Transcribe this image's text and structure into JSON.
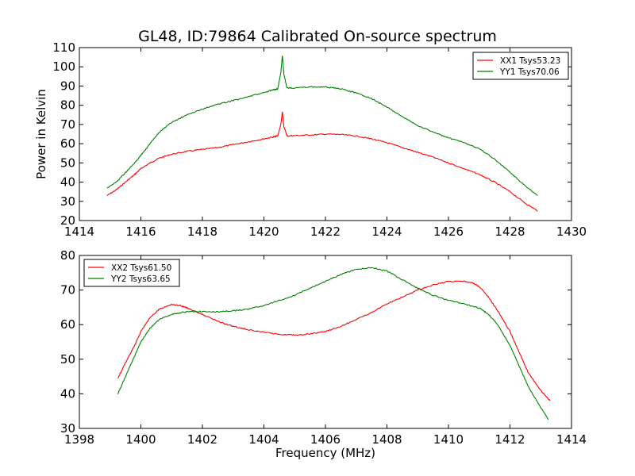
{
  "figure": {
    "title": "GL48, ID:79864 Calibrated On-source spectrum"
  },
  "chart_data": [
    {
      "type": "line",
      "title": "GL48, ID:79864 Calibrated On-source spectrum",
      "xlabel": "",
      "ylabel": "Power in Kelvin",
      "xlim": [
        1414,
        1430
      ],
      "ylim": [
        20,
        110
      ],
      "x_ticks": [
        1414,
        1416,
        1418,
        1420,
        1422,
        1424,
        1426,
        1428,
        1430
      ],
      "y_ticks": [
        20,
        30,
        40,
        50,
        60,
        70,
        80,
        90,
        100,
        110
      ],
      "grid": false,
      "legend_position": "upper-right",
      "series": [
        {
          "name": "XX1 Tsys53.23",
          "color": "#ff0000",
          "x": [
            1414.9,
            1415.2,
            1415.5,
            1415.8,
            1416.0,
            1416.3,
            1416.6,
            1417.0,
            1417.5,
            1418.0,
            1418.5,
            1419.0,
            1419.5,
            1420.0,
            1420.3,
            1420.45,
            1420.55,
            1420.6,
            1420.65,
            1420.75,
            1421.0,
            1421.5,
            1422.0,
            1422.5,
            1423.0,
            1423.5,
            1424.0,
            1424.5,
            1425.0,
            1425.5,
            1426.0,
            1426.5,
            1427.0,
            1427.5,
            1428.0,
            1428.5,
            1428.9
          ],
          "y": [
            33,
            36,
            40,
            44,
            47,
            50,
            52.5,
            54.5,
            56,
            57,
            58,
            59.5,
            61,
            62.5,
            63.5,
            64,
            70,
            76.5,
            69,
            64,
            64.2,
            64.5,
            65,
            64.8,
            64,
            62.5,
            60.5,
            58,
            55.5,
            53,
            50,
            47,
            44,
            40,
            35,
            29,
            25
          ]
        },
        {
          "name": "YY1 Tsys70.06",
          "color": "#008000",
          "x": [
            1414.9,
            1415.2,
            1415.5,
            1415.8,
            1416.0,
            1416.3,
            1416.6,
            1417.0,
            1417.5,
            1418.0,
            1418.5,
            1419.0,
            1419.5,
            1420.0,
            1420.3,
            1420.45,
            1420.55,
            1420.6,
            1420.65,
            1420.75,
            1421.0,
            1421.5,
            1422.0,
            1422.5,
            1423.0,
            1423.5,
            1424.0,
            1424.5,
            1425.0,
            1425.5,
            1426.0,
            1426.5,
            1427.0,
            1427.5,
            1428.0,
            1428.5,
            1428.9
          ],
          "y": [
            37,
            40,
            45,
            50,
            54,
            60,
            66,
            71,
            75,
            78,
            80.5,
            82.5,
            84.5,
            86.5,
            88,
            88.5,
            97,
            106,
            96,
            89,
            89,
            89.5,
            89.5,
            88.5,
            86.5,
            83.5,
            79,
            74,
            69.5,
            66,
            63,
            60.5,
            57.5,
            52,
            45,
            38,
            33
          ]
        }
      ]
    },
    {
      "type": "line",
      "title": "",
      "xlabel": "Frequency (MHz)",
      "ylabel": "",
      "xlim": [
        1398,
        1414
      ],
      "ylim": [
        30,
        80
      ],
      "x_ticks": [
        1398,
        1400,
        1402,
        1404,
        1406,
        1408,
        1410,
        1412,
        1414
      ],
      "y_ticks": [
        30,
        40,
        50,
        60,
        70,
        80
      ],
      "grid": false,
      "legend_position": "upper-left",
      "series": [
        {
          "name": "XX2 Tsys61.50",
          "color": "#ff0000",
          "x": [
            1399.25,
            1399.5,
            1399.8,
            1400.0,
            1400.3,
            1400.6,
            1401.0,
            1401.3,
            1401.6,
            1402.0,
            1402.5,
            1403.0,
            1403.5,
            1404.0,
            1404.5,
            1405.0,
            1405.5,
            1406.0,
            1406.5,
            1407.0,
            1407.5,
            1408.0,
            1408.5,
            1409.0,
            1409.5,
            1410.0,
            1410.5,
            1410.8,
            1411.0,
            1411.3,
            1411.6,
            1412.0,
            1412.3,
            1412.6,
            1413.0,
            1413.3
          ],
          "y": [
            44.5,
            49,
            54,
            58,
            62,
            64.5,
            65.8,
            65.5,
            64.5,
            63,
            61,
            59.5,
            58.5,
            57.8,
            57.2,
            57,
            57.3,
            58,
            59.5,
            61.5,
            63.5,
            66,
            68,
            70,
            71.5,
            72.5,
            72.5,
            72,
            71,
            68,
            64,
            58,
            52,
            46,
            41,
            38
          ]
        },
        {
          "name": "YY2 Tsys63.65",
          "color": "#008000",
          "x": [
            1399.25,
            1399.5,
            1399.8,
            1400.0,
            1400.3,
            1400.6,
            1401.0,
            1401.3,
            1401.6,
            1402.0,
            1402.5,
            1403.0,
            1403.5,
            1404.0,
            1404.5,
            1405.0,
            1405.5,
            1406.0,
            1406.5,
            1407.0,
            1407.5,
            1408.0,
            1408.5,
            1409.0,
            1409.5,
            1410.0,
            1410.5,
            1411.0,
            1411.3,
            1411.6,
            1412.0,
            1412.3,
            1412.6,
            1413.0,
            1413.25
          ],
          "y": [
            40,
            45,
            51,
            55,
            59,
            61.5,
            63,
            63.5,
            63.8,
            63.8,
            63.7,
            64,
            64.5,
            65.5,
            67,
            68.5,
            70.5,
            72.5,
            74.5,
            76,
            76.5,
            75.5,
            73,
            70.5,
            68.5,
            67,
            66,
            64.8,
            63,
            60,
            54,
            48,
            42,
            36,
            32.5
          ]
        }
      ]
    }
  ]
}
